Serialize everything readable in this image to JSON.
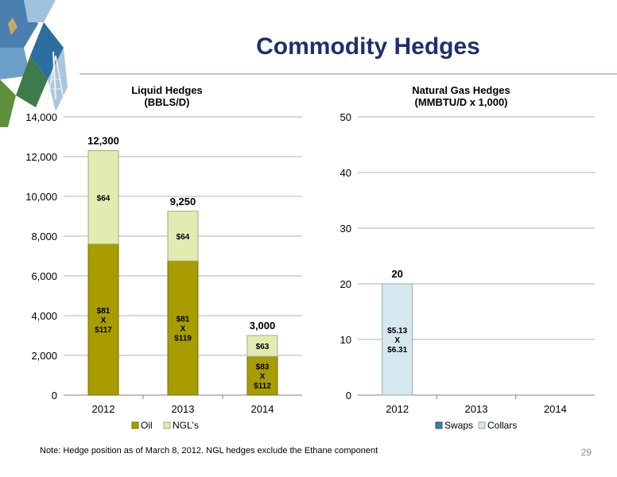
{
  "page": {
    "title": "Commodity Hedges",
    "footnote": "Note: Hedge position as of March 8, 2012. NGL hedges exclude the Ethane component",
    "page_number": "29",
    "colors": {
      "title": "#1f2f6e",
      "rule": "#b9c4da"
    }
  },
  "chart_data": [
    {
      "type": "bar",
      "stacked": true,
      "title_lines": [
        "Liquid Hedges",
        "(BBLS/D)"
      ],
      "categories": [
        "2012",
        "2013",
        "2014"
      ],
      "series": [
        {
          "name": "Oil",
          "values": [
            7600,
            6750,
            1950
          ],
          "color": "#a89c00",
          "labels": [
            [
              "$81",
              "X",
              "$117"
            ],
            [
              "$81",
              "X",
              "$119"
            ],
            [
              "$83",
              "X",
              "$112"
            ]
          ]
        },
        {
          "name": "NGL's",
          "values": [
            4700,
            2500,
            1050
          ],
          "color": "#e2ecb1",
          "labels": [
            [
              "$64"
            ],
            [
              "$64"
            ],
            [
              "$63"
            ]
          ]
        }
      ],
      "totals": [
        "12,300",
        "9,250",
        "3,000"
      ],
      "ylim": [
        0,
        14000
      ],
      "yticks": [
        "0",
        "2,000",
        "4,000",
        "6,000",
        "8,000",
        "10,000",
        "12,000",
        "14,000"
      ],
      "grid": true,
      "legend_position": "bottom"
    },
    {
      "type": "bar",
      "stacked": true,
      "title_lines": [
        "Natural Gas Hedges",
        "(MMBTU/D x 1,000)"
      ],
      "categories": [
        "2012",
        "2013",
        "2014"
      ],
      "series": [
        {
          "name": "Swaps",
          "values": [
            0,
            0,
            0
          ],
          "color": "#3f7f9f",
          "labels": [
            [],
            [],
            []
          ]
        },
        {
          "name": "Collars",
          "values": [
            20,
            0,
            0
          ],
          "color": "#d5e8f0",
          "labels": [
            [
              "$5.13",
              "X",
              "$6.31"
            ],
            [],
            []
          ]
        }
      ],
      "totals": [
        "20",
        "",
        ""
      ],
      "ylim": [
        0,
        50
      ],
      "yticks": [
        "0",
        "10",
        "20",
        "30",
        "40",
        "50"
      ],
      "grid": true,
      "legend_position": "bottom"
    }
  ]
}
